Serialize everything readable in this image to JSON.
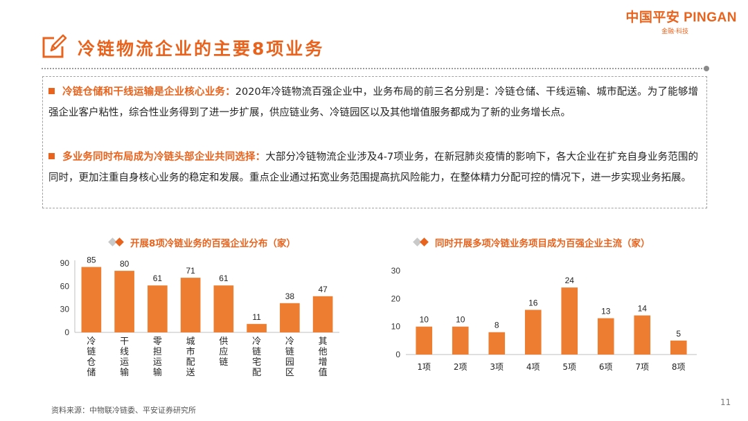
{
  "logo": {
    "main": "中国平安 PINGAN",
    "sub": "金融·科技"
  },
  "title": "冷链物流企业的主要8项业务",
  "bullets": [
    {
      "lead": "冷链仓储和干线运输是企业核心业务：",
      "text": "2020年冷链物流百强企业中，业务布局的前三名分别是：冷链仓储、干线运输、城市配送。为了能够增强企业客户粘性，综合性业务得到了进一步扩展，供应链业务、冷链园区以及其他增值服务都成为了新的业务增长点。"
    },
    {
      "lead": "多业务同时布局成为冷链头部企业共同选择：",
      "text": "大部分冷链物流企业涉及4-7项业务，在新冠肺炎疫情的影响下，各大企业在扩充自身业务范围的同时，更加注重自身核心业务的稳定和发展。重点企业通过拓宽业务范围提高抗风险能力，在整体精力分配可控的情况下，进一步实现业务拓展。"
    }
  ],
  "chart1_title": "开展8项冷链业务的百强企业分布（家）",
  "chart2_title": "同时开展多项冷链业务项目成为百强企业主流（家）",
  "chart_data": [
    {
      "type": "bar",
      "title": "开展8项冷链业务的百强企业分布（家）",
      "categories": [
        "冷链仓储",
        "干线运输",
        "零担运输",
        "城市配送",
        "供应链",
        "冷链宅配",
        "冷链园区",
        "其他增值"
      ],
      "values": [
        85,
        80,
        61,
        71,
        61,
        11,
        38,
        47
      ],
      "ylim": [
        0,
        90
      ],
      "yticks": [
        0,
        30,
        60,
        90
      ],
      "data_labels": true,
      "bar_color": "#ed7d31"
    },
    {
      "type": "bar",
      "title": "同时开展多项冷链业务项目成为百强企业主流（家）",
      "categories": [
        "1项",
        "2项",
        "3项",
        "4项",
        "5项",
        "6项",
        "7项",
        "8项"
      ],
      "values": [
        10,
        10,
        8,
        16,
        24,
        13,
        14,
        5
      ],
      "ylim": [
        0,
        30
      ],
      "yticks": [
        0,
        10,
        20,
        30
      ],
      "data_labels": true,
      "bar_color": "#ed7d31"
    }
  ],
  "source": "资料来源：中物联冷链委、平安证券研究所",
  "page_number": "11"
}
